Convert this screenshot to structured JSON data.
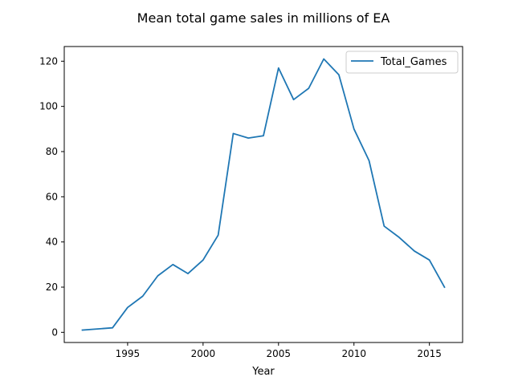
{
  "chart_data": {
    "type": "line",
    "title": "Mean total game sales in millions of EA",
    "xlabel": "Year",
    "ylabel": "",
    "xlim": [
      1990.8,
      2017.2
    ],
    "ylim": [
      -4.5,
      126.5
    ],
    "xticks": [
      1995,
      2000,
      2005,
      2010,
      2015
    ],
    "yticks": [
      0,
      20,
      40,
      60,
      80,
      100,
      120
    ],
    "grid": false,
    "legend_position": "top-right",
    "colors": {
      "series": "#1f77b4",
      "axis": "#000000"
    },
    "series": [
      {
        "name": "Total_Games",
        "x": [
          1992,
          1994,
          1995,
          1996,
          1997,
          1998,
          1999,
          2000,
          2001,
          2002,
          2003,
          2004,
          2005,
          2006,
          2007,
          2008,
          2009,
          2010,
          2011,
          2012,
          2013,
          2014,
          2015,
          2016
        ],
        "y": [
          1,
          2,
          11,
          16,
          25,
          30,
          26,
          32,
          43,
          88,
          86,
          87,
          117,
          103,
          108,
          121,
          114,
          90,
          76,
          47,
          42,
          36,
          32,
          20
        ]
      }
    ]
  }
}
